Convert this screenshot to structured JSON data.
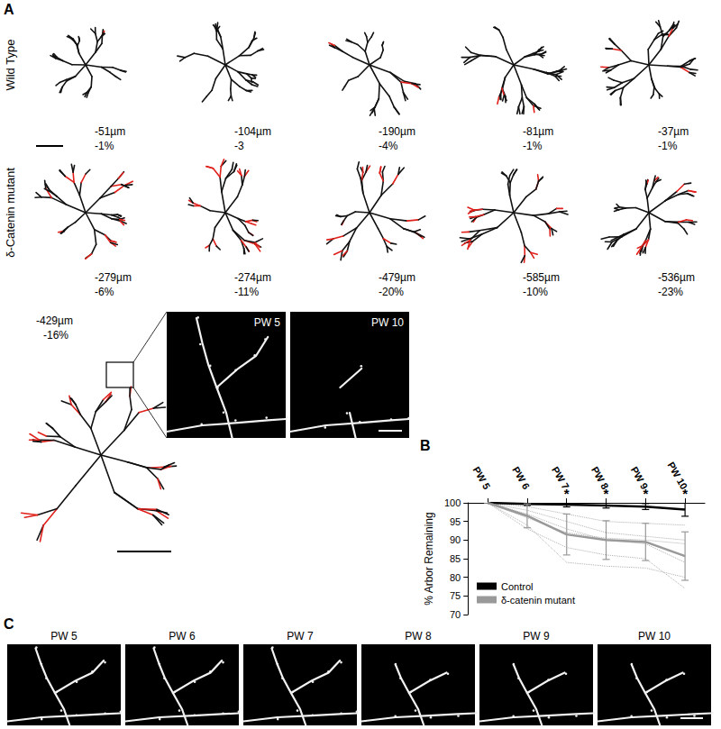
{
  "figure": {
    "panel_labels": [
      "A",
      "B",
      "C"
    ],
    "panel_a": {
      "rows": [
        {
          "label": "Wild Type",
          "cells": [
            {
              "length": "-51µm",
              "percent": "-1%"
            },
            {
              "length": "-104µm",
              "percent": "-3"
            },
            {
              "length": "-190µm",
              "percent": "-4%"
            },
            {
              "length": "-81µm",
              "percent": "-1%"
            },
            {
              "length": "-37µm",
              "percent": "-1%"
            }
          ]
        },
        {
          "label": "δ-Catenin mutant",
          "cells": [
            {
              "length": "-279µm",
              "percent": "-6%"
            },
            {
              "length": "-274µm",
              "percent": "-11%"
            },
            {
              "length": "-479µm",
              "percent": "-20%"
            },
            {
              "length": "-585µm",
              "percent": "-10%"
            },
            {
              "length": "-536µm",
              "percent": "-23%"
            }
          ]
        }
      ],
      "example": {
        "length": "-429µm",
        "percent": "-16%",
        "insets": [
          "PW 5",
          "PW 10"
        ]
      }
    },
    "panel_c": {
      "labels": [
        "PW 5",
        "PW 6",
        "PW 7",
        "PW 8",
        "PW 9",
        "PW 10"
      ]
    }
  },
  "chart_data": {
    "type": "line",
    "y_label": "% Arbor Remaining",
    "categories": [
      "PW 5",
      "PW 6",
      "PW 7",
      "PW 8",
      "PW 9",
      "PW 10"
    ],
    "ylim": [
      70,
      100
    ],
    "yticks": [
      70,
      75,
      80,
      85,
      90,
      95,
      100
    ],
    "grid": false,
    "legend": "lower left",
    "annotations": [
      {
        "x": "PW 7",
        "text": "*"
      },
      {
        "x": "PW 8",
        "text": "*"
      },
      {
        "x": "PW 9",
        "text": "*"
      },
      {
        "x": "PW 10",
        "text": "*"
      }
    ],
    "series": [
      {
        "color": "#b0b0b0",
        "line_style": "dotted",
        "values": [
          100,
          99,
          97,
          95,
          94.5,
          94
        ]
      },
      {
        "color": "#b0b0b0",
        "line_style": "dotted",
        "values": [
          100,
          96,
          92,
          90.5,
          90,
          89
        ]
      },
      {
        "color": "#b0b0b0",
        "line_style": "dotted",
        "values": [
          100,
          94,
          84,
          83,
          82.5,
          80
        ]
      },
      {
        "color": "#b0b0b0",
        "line_style": "dotted",
        "values": [
          100,
          98,
          95,
          92,
          91,
          90
        ]
      },
      {
        "color": "#b0b0b0",
        "line_style": "dotted",
        "values": [
          100,
          93,
          88,
          86,
          85,
          77
        ]
      },
      {
        "color": "#b0b0b0",
        "line_style": "dotted",
        "values": [
          100,
          97,
          93,
          90,
          89,
          84
        ]
      },
      {
        "name": "Control",
        "color": "#000000",
        "line_style": "solid",
        "values": [
          100,
          99.7,
          99.5,
          99.3,
          99,
          98.2
        ],
        "errors": [
          0,
          0.4,
          0.6,
          0.7,
          0.8,
          1.8
        ]
      },
      {
        "name": "δ-catenin mutant",
        "color": "#999999",
        "line_style": "solid",
        "values": [
          100,
          96.5,
          91.5,
          90,
          89.5,
          85.7
        ],
        "errors": [
          0,
          3.2,
          5.5,
          5.2,
          5,
          6.5
        ]
      }
    ]
  }
}
